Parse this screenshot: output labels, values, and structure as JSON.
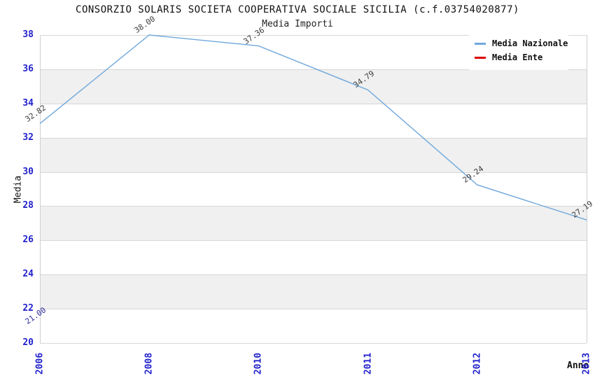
{
  "title": "CONSORZIO SOLARIS SOCIETA COOPERATIVA SOCIALE SICILIA (c.f.03754020877)",
  "subtitle": "Media Importi",
  "chart_data": {
    "type": "line",
    "categories": [
      "2006",
      "2008",
      "2010",
      "2011",
      "2012",
      "2013"
    ],
    "series": [
      {
        "name": "Media Nazionale",
        "color": "#6fa8dc",
        "label_color": "#3c3c3c",
        "values": [
          32.82,
          38.0,
          37.36,
          34.79,
          29.24,
          27.19
        ]
      },
      {
        "name": "Media Ente",
        "color": "#dd0000",
        "label_color": "#2f2f9e",
        "values": [
          21.0,
          null,
          null,
          null,
          null,
          null
        ]
      }
    ],
    "xlabel": "Anno",
    "ylabel": "Media",
    "ylim": [
      20,
      38
    ],
    "ytick_step": 2,
    "yticks": [
      20,
      22,
      24,
      26,
      28,
      30,
      32,
      34,
      36,
      38
    ],
    "grid": "horizontal-bands-alternating",
    "legend_position": "top-right",
    "band_colors": [
      "#ffffff",
      "#f0f0f0"
    ],
    "grid_color": "#d6d6d6",
    "tick_label_color": "#2222cc",
    "value_label_decimals": 2
  }
}
